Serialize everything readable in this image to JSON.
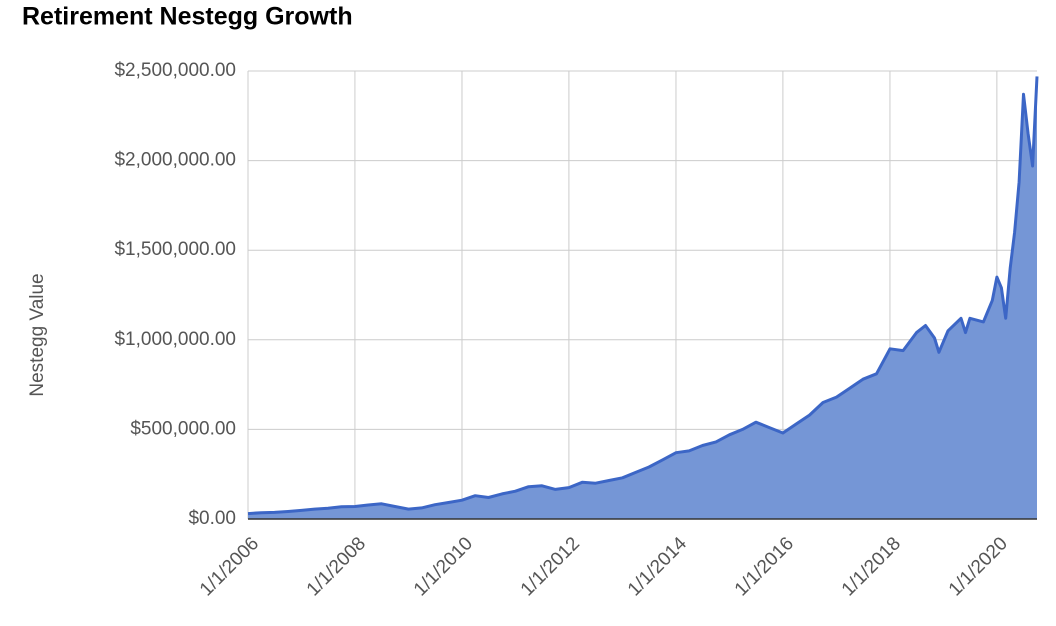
{
  "chart_data": {
    "type": "area",
    "title": "Retirement Nestegg Growth",
    "y_label": "Nestegg Value",
    "x": [
      "1/1/2006",
      "4/1/2006",
      "7/1/2006",
      "10/1/2006",
      "1/1/2007",
      "4/1/2007",
      "7/1/2007",
      "10/1/2007",
      "1/1/2008",
      "4/1/2008",
      "7/1/2008",
      "10/1/2008",
      "1/1/2009",
      "4/1/2009",
      "7/1/2009",
      "10/1/2009",
      "1/1/2010",
      "4/1/2010",
      "7/1/2010",
      "10/1/2010",
      "1/1/2011",
      "4/1/2011",
      "7/1/2011",
      "10/1/2011",
      "1/1/2012",
      "4/1/2012",
      "7/1/2012",
      "10/1/2012",
      "1/1/2013",
      "4/1/2013",
      "7/1/2013",
      "10/1/2013",
      "1/1/2014",
      "4/1/2014",
      "7/1/2014",
      "10/1/2014",
      "1/1/2015",
      "4/1/2015",
      "7/1/2015",
      "10/1/2015",
      "1/1/2016",
      "4/1/2016",
      "7/1/2016",
      "10/1/2016",
      "1/1/2017",
      "4/1/2017",
      "7/1/2017",
      "10/1/2017",
      "1/1/2018",
      "4/1/2018",
      "7/1/2018",
      "9/1/2018",
      "11/1/2018",
      "12/1/2018",
      "2/1/2019",
      "5/1/2019",
      "6/1/2019",
      "7/1/2019",
      "10/1/2019",
      "12/1/2019",
      "1/1/2020",
      "2/1/2020",
      "3/1/2020",
      "4/1/2020",
      "5/1/2020",
      "6/1/2020",
      "7/1/2020",
      "8/1/2020",
      "9/1/2020",
      "10/1/2020"
    ],
    "series": [
      {
        "name": "Nestegg Value",
        "color": "#3c66c6",
        "fill": "#7596d6",
        "values": [
          30000,
          35000,
          37000,
          42000,
          48000,
          55000,
          60000,
          68000,
          70000,
          78000,
          85000,
          70000,
          55000,
          62000,
          80000,
          92000,
          105000,
          130000,
          120000,
          140000,
          155000,
          180000,
          185000,
          165000,
          175000,
          205000,
          200000,
          215000,
          230000,
          260000,
          290000,
          330000,
          370000,
          380000,
          410000,
          430000,
          470000,
          500000,
          540000,
          510000,
          480000,
          530000,
          580000,
          650000,
          680000,
          730000,
          780000,
          810000,
          950000,
          940000,
          1040000,
          1080000,
          1010000,
          930000,
          1050000,
          1120000,
          1040000,
          1120000,
          1100000,
          1220000,
          1350000,
          1290000,
          1120000,
          1400000,
          1600000,
          1880000,
          2370000,
          2150000,
          1970000,
          2470000
        ]
      }
    ],
    "xlim": [
      "1/1/2006",
      "10/1/2020"
    ],
    "xticks": [
      "1/1/2006",
      "1/1/2008",
      "1/1/2010",
      "1/1/2012",
      "1/1/2014",
      "1/1/2016",
      "1/1/2018",
      "1/1/2020"
    ],
    "ylim": [
      0,
      2500000
    ],
    "yticks": [
      {
        "value": 0,
        "label": "$0.00"
      },
      {
        "value": 500000,
        "label": "$500,000.00"
      },
      {
        "value": 1000000,
        "label": "$1,000,000.00"
      },
      {
        "value": 1500000,
        "label": "$1,500,000.00"
      },
      {
        "value": 2000000,
        "label": "$2,000,000.00"
      },
      {
        "value": 2500000,
        "label": "$2,500,000.00"
      }
    ],
    "grid": true
  }
}
